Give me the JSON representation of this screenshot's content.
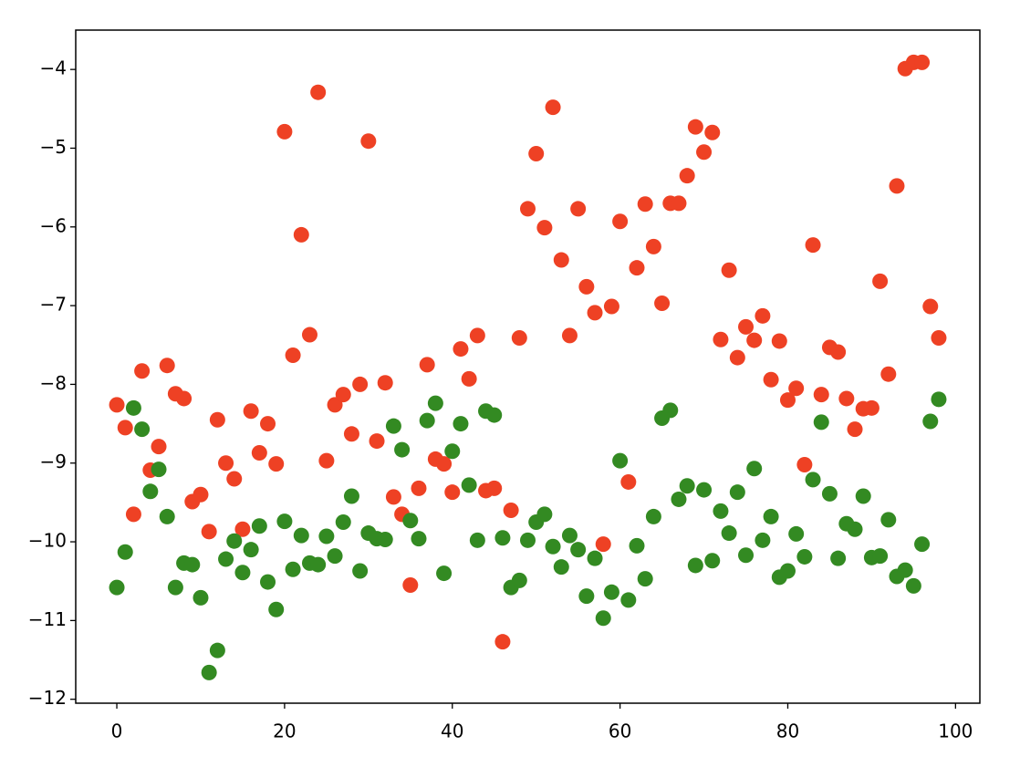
{
  "chart_data": {
    "type": "scatter",
    "x": [
      0,
      1,
      2,
      3,
      4,
      5,
      6,
      7,
      8,
      9,
      10,
      11,
      12,
      13,
      14,
      15,
      16,
      17,
      18,
      19,
      20,
      21,
      22,
      23,
      24,
      25,
      26,
      27,
      28,
      29,
      30,
      31,
      32,
      33,
      34,
      35,
      36,
      37,
      38,
      39,
      40,
      41,
      42,
      43,
      44,
      45,
      46,
      47,
      48,
      49,
      50,
      51,
      52,
      53,
      54,
      55,
      56,
      57,
      58,
      59,
      60,
      61,
      62,
      63,
      64,
      65,
      66,
      67,
      68,
      69,
      70,
      71,
      72,
      73,
      74,
      75,
      76,
      77,
      78,
      79,
      80,
      81,
      82,
      83,
      84,
      85,
      86,
      87,
      88,
      89,
      90,
      91,
      92,
      93,
      94,
      95,
      96,
      97,
      98
    ],
    "series": [
      {
        "color": "#ee4124",
        "values": [
          -8.26,
          -8.55,
          -9.65,
          -7.83,
          -9.09,
          -8.79,
          -7.76,
          -8.12,
          -8.18,
          -9.49,
          -9.4,
          -9.87,
          -8.45,
          -9.0,
          -9.2,
          -9.84,
          -8.34,
          -8.87,
          -8.5,
          -9.01,
          -4.79,
          -7.63,
          -6.1,
          -7.37,
          -4.29,
          -8.97,
          -8.26,
          -8.13,
          -8.63,
          -8.0,
          -4.91,
          -8.72,
          -7.98,
          -9.43,
          -9.65,
          -10.55,
          -9.32,
          -7.75,
          -8.95,
          -9.01,
          -9.37,
          -7.55,
          -7.93,
          -7.38,
          -9.35,
          -9.32,
          -11.27,
          -9.6,
          -7.41,
          -5.77,
          -5.07,
          -6.01,
          -4.48,
          -6.42,
          -7.38,
          -5.77,
          -6.76,
          -7.09,
          -10.03,
          -7.01,
          -5.93,
          -9.24,
          -6.52,
          -5.71,
          -6.25,
          -6.97,
          -5.7,
          -5.7,
          -5.35,
          -4.73,
          -5.05,
          -4.8,
          -7.43,
          -6.55,
          -7.66,
          -7.27,
          -7.44,
          -7.13,
          -7.94,
          -7.45,
          -8.2,
          -8.05,
          -9.02,
          -6.23,
          -8.13,
          -7.53,
          -7.59,
          -8.18,
          -8.57,
          -8.31,
          -8.3,
          -6.69,
          -7.87,
          -5.48,
          -3.99,
          -3.91,
          -3.91,
          -7.01,
          -7.41
        ]
      },
      {
        "color": "#338a22",
        "values": [
          -10.58,
          -10.13,
          -8.3,
          -8.57,
          -9.36,
          -9.08,
          -9.68,
          -10.58,
          -10.27,
          -10.29,
          -10.71,
          -11.66,
          -11.38,
          -10.22,
          -9.99,
          -10.39,
          -10.1,
          -9.8,
          -10.51,
          -10.86,
          -9.74,
          -10.35,
          -9.92,
          -10.27,
          -10.29,
          -9.93,
          -10.18,
          -9.75,
          -9.42,
          -10.37,
          -9.89,
          -9.96,
          -9.97,
          -8.53,
          -8.83,
          -9.73,
          -9.96,
          -8.46,
          -8.24,
          -10.4,
          -8.85,
          -8.5,
          -9.28,
          -9.98,
          -8.34,
          -8.39,
          -9.95,
          -10.58,
          -10.49,
          -9.98,
          -9.75,
          -9.65,
          -10.06,
          -10.32,
          -9.92,
          -10.1,
          -10.69,
          -10.21,
          -10.97,
          -10.64,
          -8.97,
          -10.74,
          -10.05,
          -10.47,
          -9.68,
          -8.43,
          -8.33,
          -9.46,
          -9.29,
          -10.3,
          -9.34,
          -10.24,
          -9.61,
          -9.89,
          -9.37,
          -10.17,
          -9.07,
          -9.98,
          -9.68,
          -10.45,
          -10.37,
          -9.9,
          -10.19,
          -9.21,
          -8.48,
          -9.39,
          -10.21,
          -9.77,
          -9.84,
          -9.42,
          -10.2,
          -10.18,
          -9.72,
          -10.44,
          -10.36,
          -10.56,
          -10.03,
          -8.47,
          -8.19
        ]
      }
    ],
    "xlim": [
      -4.9,
      102.9
    ],
    "xticks": [
      0,
      20,
      40,
      60,
      80,
      100
    ],
    "ylim": [
      -12.05,
      -3.5
    ],
    "yticks": [
      {
        "value": -12,
        "label": "−12"
      },
      {
        "value": -11,
        "label": "−11"
      },
      {
        "value": -10,
        "label": "−10"
      },
      {
        "value": -9,
        "label": "−9"
      },
      {
        "value": -8,
        "label": "−8"
      },
      {
        "value": -7,
        "label": "−7"
      },
      {
        "value": -6,
        "label": "−6"
      },
      {
        "value": -5,
        "label": "−5"
      },
      {
        "value": -4,
        "label": "−4"
      }
    ]
  }
}
